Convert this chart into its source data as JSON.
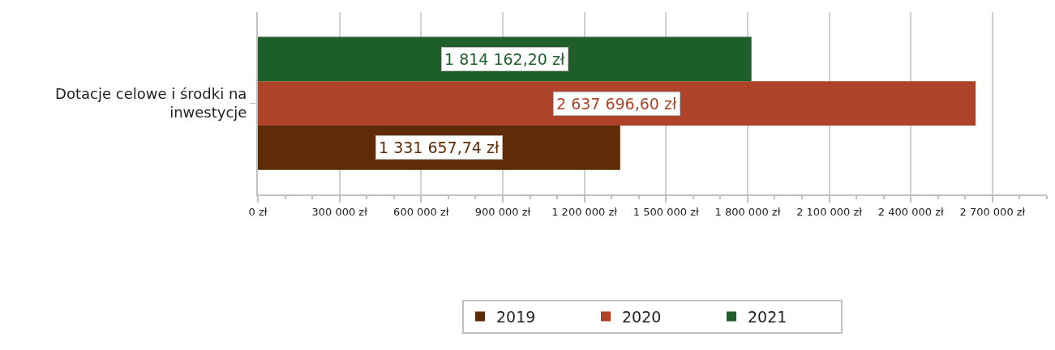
{
  "chart_data": {
    "type": "bar",
    "orientation": "horizontal",
    "categories": [
      "Dotacje celowe i środki na inwestycje"
    ],
    "series": [
      {
        "name": "2019",
        "color": "#5e2c06",
        "values": [
          1331657.74
        ],
        "value_labels": [
          "1 331 657,74 zł"
        ]
      },
      {
        "name": "2020",
        "color": "#ae4329",
        "values": [
          2637696.6
        ],
        "value_labels": [
          "2 637 696,60 zł"
        ]
      },
      {
        "name": "2021",
        "color": "#1e5e2a",
        "values": [
          1814162.2
        ],
        "value_labels": [
          "1 814 162,20 zł"
        ]
      }
    ],
    "xlim": [
      0,
      2900000
    ],
    "xticks": [
      {
        "value": 0,
        "label": "0 zł"
      },
      {
        "value": 300000,
        "label": "300 000 zł"
      },
      {
        "value": 600000,
        "label": "600 000 zł"
      },
      {
        "value": 900000,
        "label": "900 000 zł"
      },
      {
        "value": 1200000,
        "label": "1 200 000 zł"
      },
      {
        "value": 1500000,
        "label": "1 500 000 zł"
      },
      {
        "value": 1800000,
        "label": "1 800 000 zł"
      },
      {
        "value": 2100000,
        "label": "2 100 000 zł"
      },
      {
        "value": 2400000,
        "label": "2 400 000 zł"
      },
      {
        "value": 2700000,
        "label": "2 700 000 zł"
      }
    ],
    "grid": "x",
    "legend": "bottom"
  }
}
